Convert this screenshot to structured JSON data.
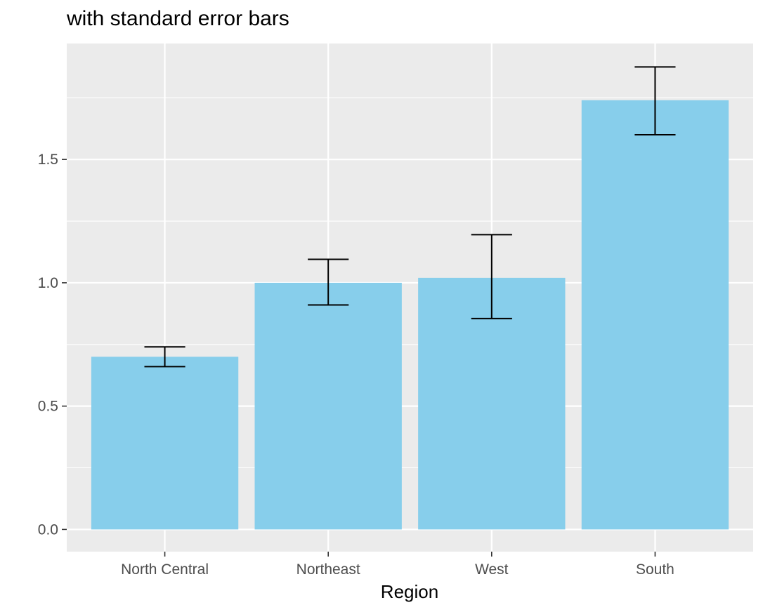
{
  "chart_data": {
    "type": "bar",
    "title": "with standard error bars",
    "xlabel": "Region",
    "ylabel": "",
    "categories": [
      "North Central",
      "Northeast",
      "West",
      "South"
    ],
    "values": [
      0.7,
      1.0,
      1.02,
      1.74
    ],
    "error_bars": {
      "lower": [
        0.66,
        0.91,
        0.855,
        1.6
      ],
      "upper": [
        0.74,
        1.095,
        1.195,
        1.875
      ]
    },
    "ylim": [
      -0.09,
      1.97
    ],
    "yticks": [
      0.0,
      0.5,
      1.0,
      1.5
    ],
    "ytick_labels": [
      "0.0",
      "0.5",
      "1.0",
      "1.5"
    ],
    "grid": true,
    "colors": {
      "bar": "#87CEEB",
      "panel_background": "#EBEBEB",
      "grid": "#FFFFFF",
      "error_bar": "#000000",
      "tick_label": "#4D4D4D",
      "tick": "#333333"
    }
  }
}
